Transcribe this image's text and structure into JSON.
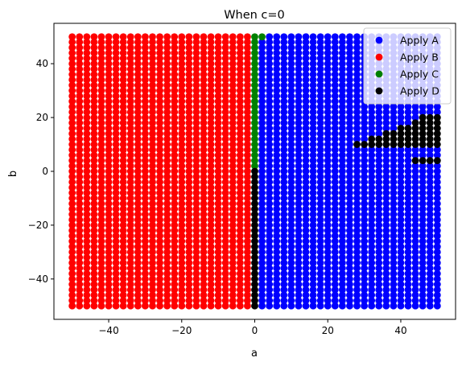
{
  "chart_data": {
    "type": "scatter",
    "title": "When c=0",
    "xlabel": "a",
    "ylabel": "b",
    "xlim": [
      -55,
      55
    ],
    "ylim": [
      -55,
      55
    ],
    "x_ticks": [
      -40,
      -20,
      0,
      20,
      40
    ],
    "y_ticks": [
      -40,
      -20,
      0,
      20,
      40
    ],
    "x_tick_labels": [
      "−40",
      "−20",
      "0",
      "20",
      "40"
    ],
    "y_tick_labels": [
      "−40",
      "−20",
      "0",
      "20",
      "40"
    ],
    "grid": false,
    "legend_position": "upper right",
    "grid_sampling": {
      "a_min": -50,
      "a_max": 50,
      "b_min": -50,
      "b_max": 50,
      "step": 2
    },
    "series": [
      {
        "name": "Apply A",
        "color": "#0000ff",
        "region": "a >= 2 (a = 2..50), all b, except points labeled Apply C or Apply D"
      },
      {
        "name": "Apply B",
        "color": "#ff0000",
        "region": "a <= -2 (a = -50..-2), all b"
      },
      {
        "name": "Apply C",
        "color": "#008000",
        "points_rule": "a = 0, b = 2..50; plus (2, 50)"
      },
      {
        "name": "Apply D",
        "color": "#000000",
        "points_rule": "a = 0, b = -50..0; upper-right wedge a=28..50, b=10..20; small row a=44..50 at b=4"
      }
    ]
  }
}
